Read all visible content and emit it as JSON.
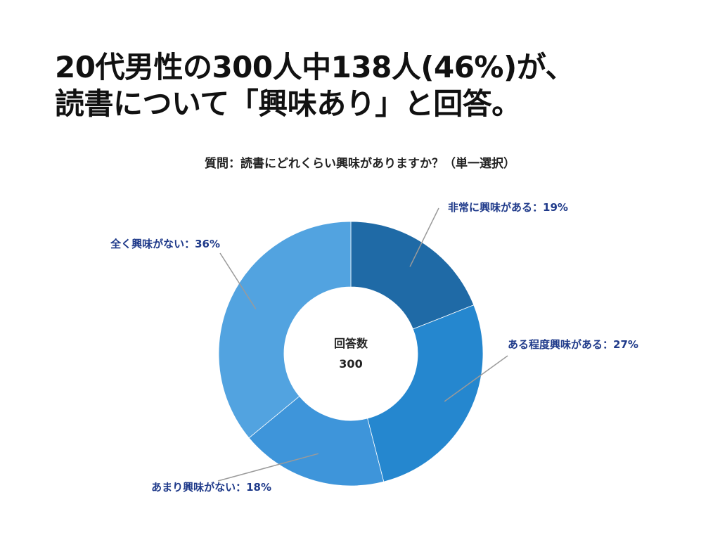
{
  "headline": {
    "line1": "20代男性の300人中138人(46%)が、",
    "line2": "読書について「興味あり」と回答。"
  },
  "subtitle": "質問：読書にどれくらい興味がありますか？（単一選択）",
  "chart_data": {
    "type": "pie",
    "donut": true,
    "categories": [
      "非常に興味がある",
      "ある程度興味がある",
      "あまり興味がない",
      "全く興味がない"
    ],
    "values": [
      19,
      27,
      18,
      36
    ],
    "unit": "%",
    "labels": [
      "非常に興味がある：19%",
      "ある程度興味がある：27%",
      "あまり興味がない：18%",
      "全く興味がない：36%"
    ],
    "colors": [
      "#1F6AA6",
      "#2587CF",
      "#3E95DA",
      "#52A3E0"
    ],
    "label_color": "#1F3A8A",
    "leader_color": "#9A9A9A",
    "center_label": "回答数",
    "center_value": "300",
    "title": "質問：読書にどれくらい興味がありますか？（単一選択）"
  }
}
